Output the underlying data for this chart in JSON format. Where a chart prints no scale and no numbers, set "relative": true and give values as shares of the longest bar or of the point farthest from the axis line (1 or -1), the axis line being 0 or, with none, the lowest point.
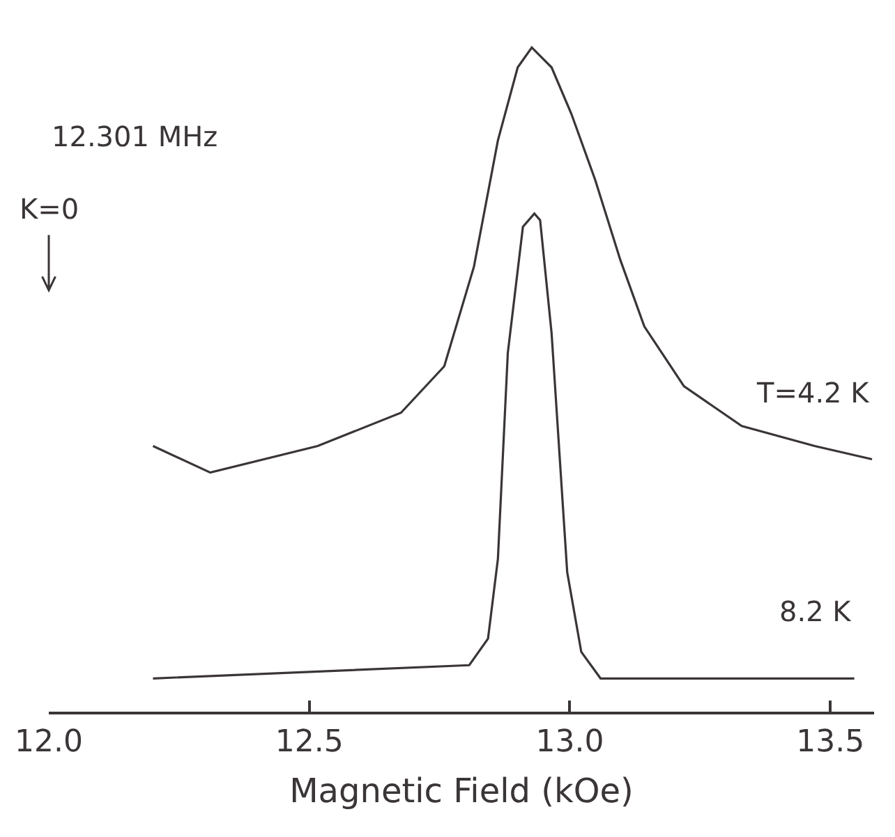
{
  "chart_data": {
    "type": "line",
    "relative": true,
    "xlabel": "Magnetic Field (kOe)",
    "xlim": [
      12.0,
      13.584
    ],
    "xticks": [
      {
        "value": 12.0,
        "label": "12.0"
      },
      {
        "value": 12.5,
        "label": "12.5"
      },
      {
        "value": 13.0,
        "label": "13.0"
      },
      {
        "value": 13.5,
        "label": "13.5"
      }
    ],
    "x": [
      12.2,
      12.31,
      12.516,
      12.676,
      12.759,
      12.816,
      12.862,
      12.9,
      12.927,
      12.965,
      13.003,
      13.049,
      13.097,
      13.143,
      13.219,
      13.33,
      13.47,
      13.58
    ],
    "series": [
      {
        "name": "T=4.2 K",
        "color": "#3a3536",
        "values": [
          0.4,
          0.36,
          0.4,
          0.45,
          0.52,
          0.67,
          0.86,
          0.97,
          1.0,
          0.97,
          0.9,
          0.8,
          0.68,
          0.58,
          0.49,
          0.43,
          0.4,
          0.38
        ]
      },
      {
        "name": "8.2 K",
        "color": "#3a3536",
        "x": [
          12.2,
          12.807,
          12.843,
          12.862,
          12.881,
          12.91,
          12.932,
          12.943,
          12.965,
          12.995,
          13.022,
          13.059,
          13.546
        ],
        "values": [
          0.05,
          0.07,
          0.11,
          0.23,
          0.54,
          0.73,
          0.75,
          0.74,
          0.57,
          0.21,
          0.09,
          0.05,
          0.05
        ]
      }
    ],
    "annotations": [
      "12.301 MHz",
      "K=0"
    ],
    "legend": false,
    "marker": "none",
    "line_style": "solid"
  }
}
